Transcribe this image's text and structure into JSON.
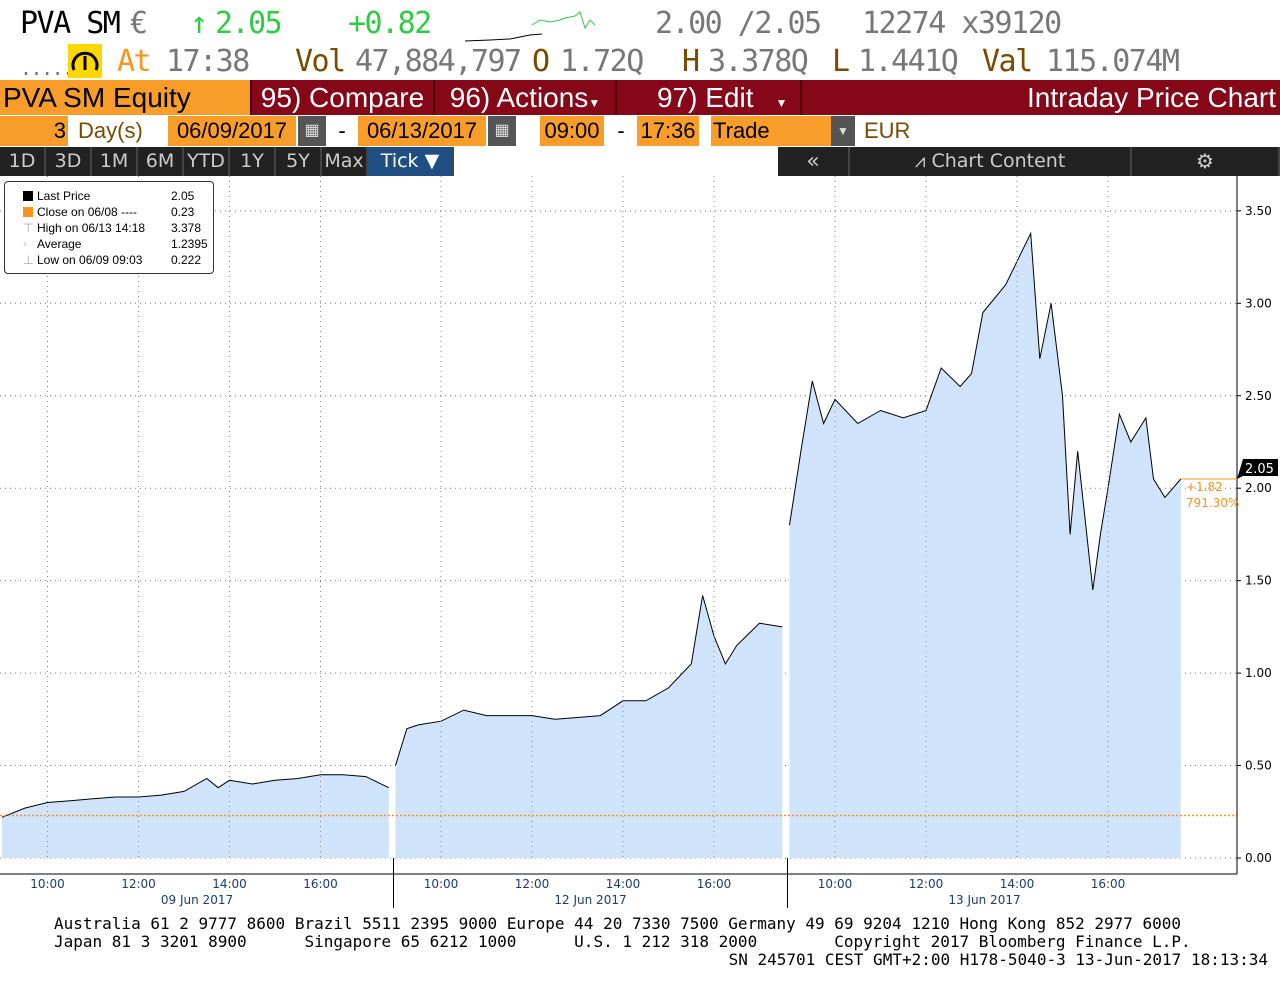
{
  "quote": {
    "ticker": "PVA SM",
    "currency": "€",
    "arrow": "↑",
    "last": "2.05",
    "change": "+0.82",
    "bid_ask": "2.00 /2.05",
    "size": "12274 x39120",
    "dots": ".....",
    "at_label": "At",
    "time": "17:38",
    "vol_label": "Vol",
    "vol": "47,884,797",
    "open_label": "O",
    "open": "1.72Q",
    "high_label": "H",
    "high": "3.378Q",
    "low_label": "L",
    "low": "1.441Q",
    "val_label": "Val",
    "val": "115.074M"
  },
  "toolbar": {
    "security": "PVA SM Equity",
    "compare": "95) Compare",
    "actions": "96) Actions",
    "edit": "97) Edit",
    "title": "Intraday Price Chart"
  },
  "range": {
    "count": "3",
    "unit": "Day(s)",
    "start": "06/09/2017",
    "dash": "-",
    "end": "06/13/2017",
    "t_start": "09:00",
    "t_end": "17:36",
    "type": "Trade",
    "ccy": "EUR"
  },
  "periods": [
    "1D",
    "3D",
    "1M",
    "6M",
    "YTD",
    "1Y",
    "5Y",
    "Max",
    "Tick ▼"
  ],
  "chart_toolbar": {
    "collapse": "«",
    "content": "Chart Content"
  },
  "legend": [
    {
      "label": "Last Price",
      "value": "2.05",
      "color": "#000000"
    },
    {
      "label": "Close on 06/08 ----",
      "value": "0.23",
      "color": "#f7941d"
    },
    {
      "label": "High on 06/13 14:18",
      "value": "3.378"
    },
    {
      "label": "Average",
      "value": "1.2395"
    },
    {
      "label": "Low on 06/09 09:03",
      "value": "0.222"
    }
  ],
  "chart_data": {
    "type": "area",
    "ylim": [
      0,
      3.6
    ],
    "yticks": [
      "0.00",
      "0.50",
      "1.00",
      "1.50",
      "2.00",
      "2.50",
      "3.00",
      "3.50"
    ],
    "days": [
      {
        "label": "09 Jun 2017",
        "date": "2017-06-09"
      },
      {
        "label": "12 Jun 2017",
        "date": "2017-06-12"
      },
      {
        "label": "13 Jun 2017",
        "date": "2017-06-13"
      }
    ],
    "xticks": [
      "10:00",
      "12:00",
      "14:00",
      "16:00"
    ],
    "session": [
      "09:00",
      "17:30"
    ],
    "prev_close": 0.23,
    "last_label": "2.05",
    "change_label": "+1.82",
    "change_pct": "791.30%",
    "colors": {
      "fill": "#cfe4fb",
      "line": "#000000",
      "close": "#f7941d"
    },
    "series": [
      [
        "2017-06-09 09:00",
        0.22
      ],
      [
        "2017-06-09 09:30",
        0.27
      ],
      [
        "2017-06-09 10:00",
        0.3
      ],
      [
        "2017-06-09 10:30",
        0.31
      ],
      [
        "2017-06-09 11:00",
        0.32
      ],
      [
        "2017-06-09 11:30",
        0.33
      ],
      [
        "2017-06-09 12:00",
        0.33
      ],
      [
        "2017-06-09 12:30",
        0.34
      ],
      [
        "2017-06-09 13:00",
        0.36
      ],
      [
        "2017-06-09 13:30",
        0.43
      ],
      [
        "2017-06-09 13:45",
        0.38
      ],
      [
        "2017-06-09 14:00",
        0.42
      ],
      [
        "2017-06-09 14:30",
        0.4
      ],
      [
        "2017-06-09 15:00",
        0.42
      ],
      [
        "2017-06-09 15:30",
        0.43
      ],
      [
        "2017-06-09 16:00",
        0.45
      ],
      [
        "2017-06-09 16:30",
        0.45
      ],
      [
        "2017-06-09 17:00",
        0.44
      ],
      [
        "2017-06-09 17:30",
        0.38
      ],
      [
        "2017-06-12 09:00",
        0.5
      ],
      [
        "2017-06-12 09:15",
        0.7
      ],
      [
        "2017-06-12 09:30",
        0.72
      ],
      [
        "2017-06-12 10:00",
        0.74
      ],
      [
        "2017-06-12 10:30",
        0.8
      ],
      [
        "2017-06-12 11:00",
        0.77
      ],
      [
        "2017-06-12 12:00",
        0.77
      ],
      [
        "2017-06-12 12:30",
        0.75
      ],
      [
        "2017-06-12 13:00",
        0.76
      ],
      [
        "2017-06-12 13:30",
        0.77
      ],
      [
        "2017-06-12 14:00",
        0.85
      ],
      [
        "2017-06-12 14:30",
        0.85
      ],
      [
        "2017-06-12 15:00",
        0.92
      ],
      [
        "2017-06-12 15:30",
        1.05
      ],
      [
        "2017-06-12 15:45",
        1.42
      ],
      [
        "2017-06-12 16:00",
        1.2
      ],
      [
        "2017-06-12 16:15",
        1.05
      ],
      [
        "2017-06-12 16:30",
        1.15
      ],
      [
        "2017-06-12 17:00",
        1.27
      ],
      [
        "2017-06-12 17:30",
        1.25
      ],
      [
        "2017-06-13 09:00",
        1.8
      ],
      [
        "2017-06-13 09:15",
        2.2
      ],
      [
        "2017-06-13 09:30",
        2.58
      ],
      [
        "2017-06-13 09:45",
        2.35
      ],
      [
        "2017-06-13 10:00",
        2.48
      ],
      [
        "2017-06-13 10:30",
        2.35
      ],
      [
        "2017-06-13 11:00",
        2.42
      ],
      [
        "2017-06-13 11:30",
        2.38
      ],
      [
        "2017-06-13 12:00",
        2.42
      ],
      [
        "2017-06-13 12:20",
        2.65
      ],
      [
        "2017-06-13 12:45",
        2.55
      ],
      [
        "2017-06-13 13:00",
        2.62
      ],
      [
        "2017-06-13 13:15",
        2.95
      ],
      [
        "2017-06-13 13:45",
        3.1
      ],
      [
        "2017-06-13 14:18",
        3.378
      ],
      [
        "2017-06-13 14:30",
        2.7
      ],
      [
        "2017-06-13 14:45",
        3.0
      ],
      [
        "2017-06-13 15:00",
        2.5
      ],
      [
        "2017-06-13 15:10",
        1.75
      ],
      [
        "2017-06-13 15:20",
        2.2
      ],
      [
        "2017-06-13 15:40",
        1.45
      ],
      [
        "2017-06-13 15:50",
        1.75
      ],
      [
        "2017-06-13 16:00",
        2.0
      ],
      [
        "2017-06-13 16:15",
        2.4
      ],
      [
        "2017-06-13 16:30",
        2.25
      ],
      [
        "2017-06-13 16:50",
        2.38
      ],
      [
        "2017-06-13 17:00",
        2.05
      ],
      [
        "2017-06-13 17:15",
        1.95
      ],
      [
        "2017-06-13 17:36",
        2.05
      ]
    ]
  },
  "footer": {
    "line1": "Australia 61 2 9777 8600 Brazil 5511 2395 9000 Europe 44 20 7330 7500 Germany 49 69 9204 1210 Hong Kong 852 2977 6000",
    "line2": "Japan 81 3 3201 8900      Singapore 65 6212 1000      U.S. 1 212 318 2000        Copyright 2017 Bloomberg Finance L.P.",
    "line3": "SN 245701 CEST GMT+2:00 H178-5040-3 13-Jun-2017 18:13:34"
  }
}
